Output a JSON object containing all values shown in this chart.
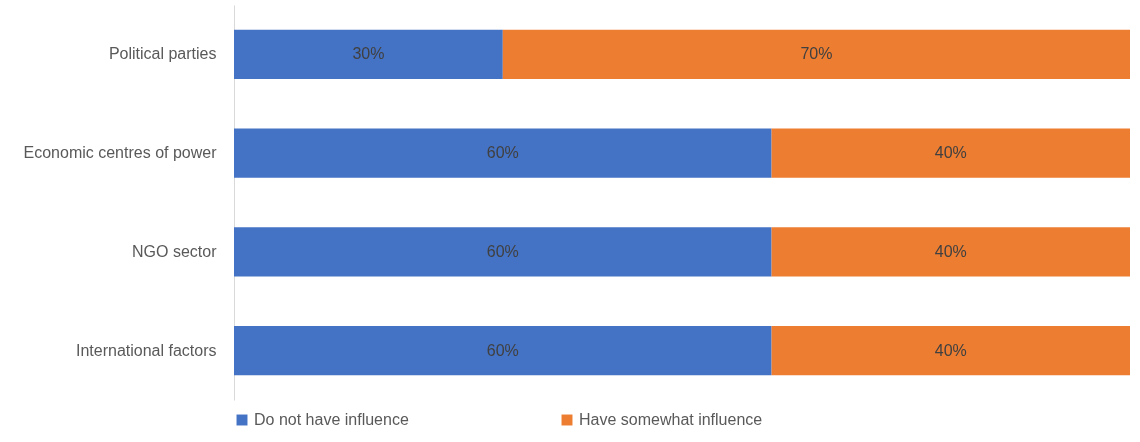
{
  "chart_data": {
    "type": "bar",
    "orientation": "horizontal",
    "stacked": true,
    "categories": [
      "Political parties",
      "Economic centres of power",
      "NGO sector",
      "International factors"
    ],
    "series": [
      {
        "name": "Do not have influence",
        "color": "#4472c4",
        "values": [
          30,
          60,
          60,
          60
        ],
        "value_labels": [
          "30%",
          "60%",
          "60%",
          "60%"
        ]
      },
      {
        "name": "Have somewhat influence",
        "color": "#ed7d31",
        "values": [
          70,
          40,
          40,
          40
        ],
        "value_labels": [
          "70%",
          "40%",
          "40%",
          "40%"
        ]
      }
    ],
    "xlim": [
      0,
      100
    ],
    "tick_labels": "y",
    "legend": "bottom"
  }
}
